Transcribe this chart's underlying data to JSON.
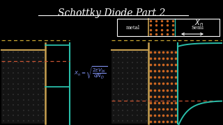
{
  "title": "Schottky Diode Part 2",
  "bg_color": "#000000",
  "title_color": "#ffffff",
  "title_fontsize": 10,
  "metal_color": "#c8a050",
  "teal_color": "#2abfaa",
  "dashed_color": "#cc5533",
  "dashed_color2": "#ccaa33",
  "formula_color": "#8899ff",
  "xn_color": "#ffffff",
  "legend_metal_dot": "#cc6622"
}
